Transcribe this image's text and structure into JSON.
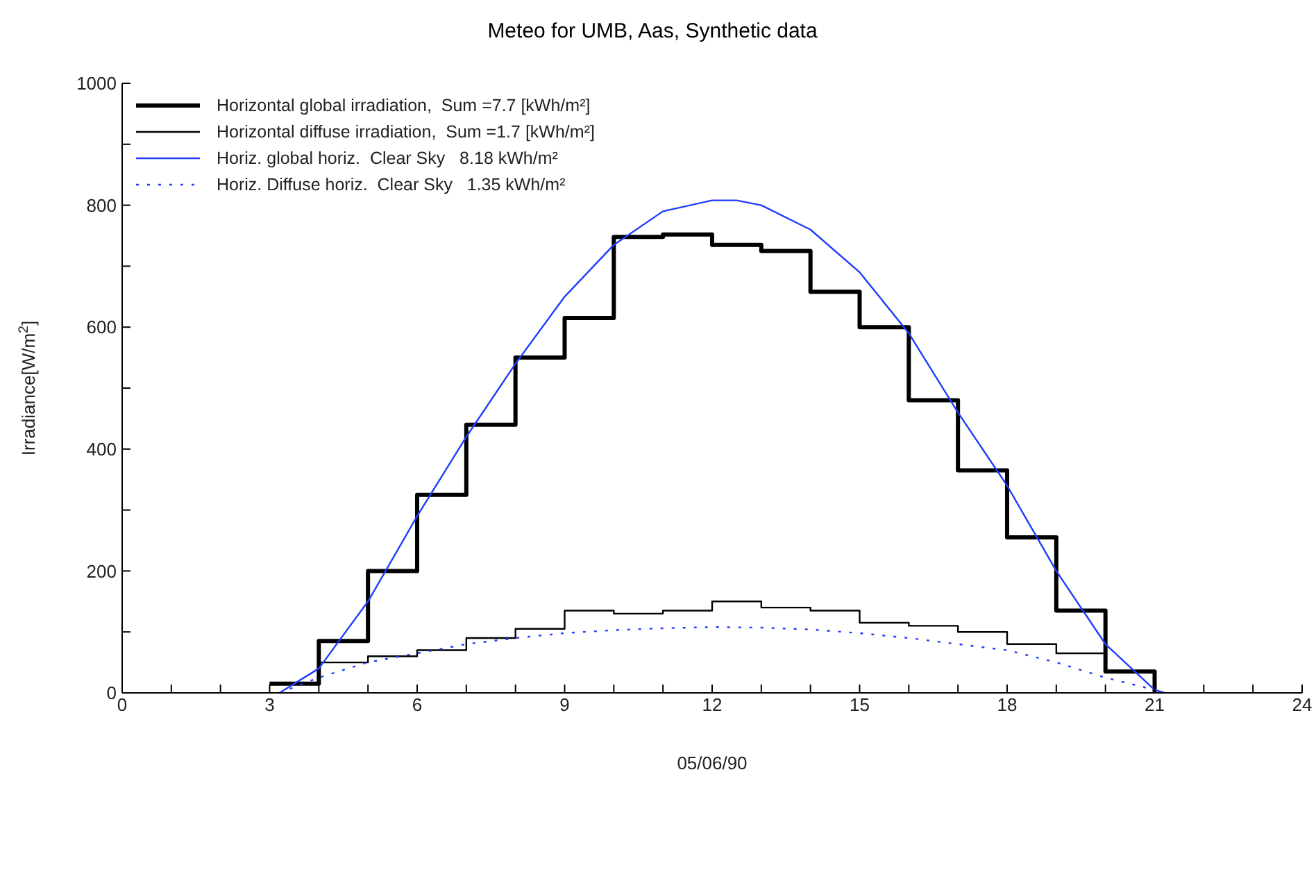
{
  "chart_data": {
    "type": "step",
    "title": "Meteo for UMB, Aas, Synthetic data",
    "xlabel": "05/06/90",
    "ylabel": "Irradiance[W/m$^{2}$]",
    "xlim": [
      0,
      24
    ],
    "xticks": [
      0,
      {
        "value": 1,
        "label": null
      },
      {
        "value": 2,
        "label": null
      },
      3,
      {
        "value": 4,
        "label": null
      },
      {
        "value": 5,
        "label": null
      },
      6,
      {
        "value": 7,
        "label": null
      },
      {
        "value": 8,
        "label": null
      },
      9,
      {
        "value": 10,
        "label": null
      },
      {
        "value": 11,
        "label": null
      },
      12,
      {
        "value": 13,
        "label": null
      },
      {
        "value": 14,
        "label": null
      },
      15,
      {
        "value": 16,
        "label": null
      },
      {
        "value": 17,
        "label": null
      },
      18,
      {
        "value": 19,
        "label": null
      },
      {
        "value": 20,
        "label": null
      },
      21,
      {
        "value": 22,
        "label": null
      },
      {
        "value": 23,
        "label": null
      },
      24
    ],
    "ylim": [
      0,
      1000
    ],
    "yticks": [
      0,
      {
        "value": 100,
        "label": null
      },
      200,
      {
        "value": 300,
        "label": null
      },
      400,
      {
        "value": 500,
        "label": null
      },
      600,
      {
        "value": 700,
        "label": null
      },
      800,
      {
        "value": 900,
        "label": null
      },
      1000
    ],
    "grid": false,
    "legend": "top left",
    "marker": "none",
    "series": [
      {
        "name": "Horizontal global irradiation,  Sum =7.7 [kWh/m²]",
        "color": "#000000",
        "line_style": "solid",
        "x": [
          3,
          4,
          5,
          6,
          7,
          8,
          9,
          10,
          11,
          12,
          13,
          14,
          15,
          16,
          17,
          18,
          19,
          20,
          21
        ],
        "values": [
          15,
          85,
          200,
          325,
          440,
          550,
          615,
          748,
          752,
          735,
          725,
          658,
          600,
          480,
          365,
          255,
          135,
          35,
          0
        ]
      },
      {
        "name": "Horizontal diffuse irradiation,  Sum =1.7 [kWh/m²]",
        "color": "#000000",
        "line_style": "solid",
        "x": [
          3,
          4,
          5,
          6,
          7,
          8,
          9,
          10,
          11,
          12,
          13,
          14,
          15,
          16,
          17,
          18,
          19,
          20,
          21
        ],
        "values": [
          15,
          50,
          60,
          70,
          90,
          105,
          135,
          130,
          135,
          150,
          140,
          135,
          115,
          110,
          100,
          80,
          65,
          35,
          0
        ]
      },
      {
        "name": "Horiz. global horiz.  Clear Sky   8.18 kWh/m²",
        "type": "line",
        "color": "#1f3cff",
        "line_style": "solid",
        "x": [
          3.2,
          4,
          5,
          6,
          7,
          8,
          9,
          10,
          11,
          12,
          12.5,
          13,
          14,
          15,
          16,
          17,
          18,
          19,
          20,
          21,
          21.2
        ],
        "values": [
          0,
          40,
          150,
          290,
          420,
          540,
          650,
          735,
          790,
          808,
          808,
          800,
          760,
          690,
          590,
          460,
          340,
          200,
          80,
          5,
          0
        ]
      },
      {
        "name": "Horiz. Diffuse horiz.  Clear Sky   1.35 kWh/m²",
        "type": "line",
        "color": "#1f3cff",
        "line_style": "dotted",
        "x": [
          3.2,
          4,
          5,
          6,
          7,
          8,
          9,
          10,
          11,
          12,
          13,
          14,
          15,
          16,
          17,
          18,
          19,
          20,
          21,
          21.2
        ],
        "values": [
          0,
          25,
          50,
          65,
          80,
          90,
          98,
          103,
          106,
          108,
          107,
          104,
          98,
          90,
          80,
          70,
          50,
          25,
          5,
          0
        ]
      }
    ]
  }
}
